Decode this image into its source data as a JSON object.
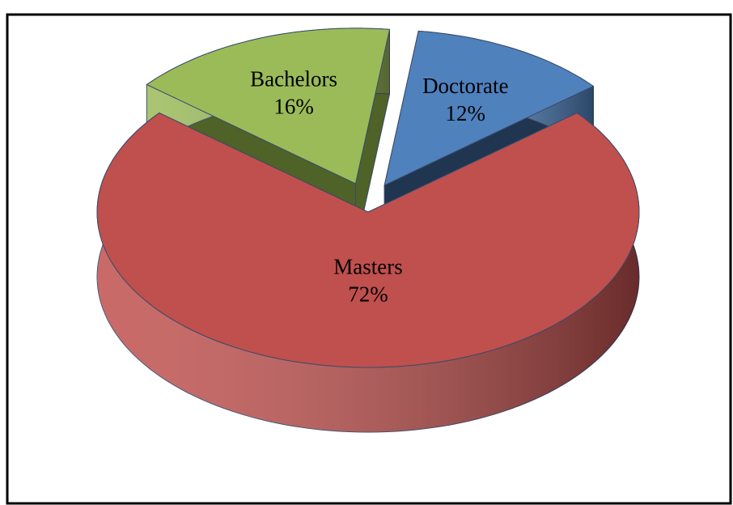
{
  "chart_data": {
    "type": "pie",
    "categories": [
      "Doctorate",
      "Masters",
      "Bachelors"
    ],
    "values": [
      12,
      72,
      16
    ],
    "value_labels": [
      "12%",
      "72%",
      "16%"
    ],
    "colors": [
      "#4f81bd",
      "#c0504d",
      "#9bbb59"
    ],
    "side_colors": [
      "#1f3550",
      "#7a2e2d",
      "#4f6228"
    ]
  }
}
